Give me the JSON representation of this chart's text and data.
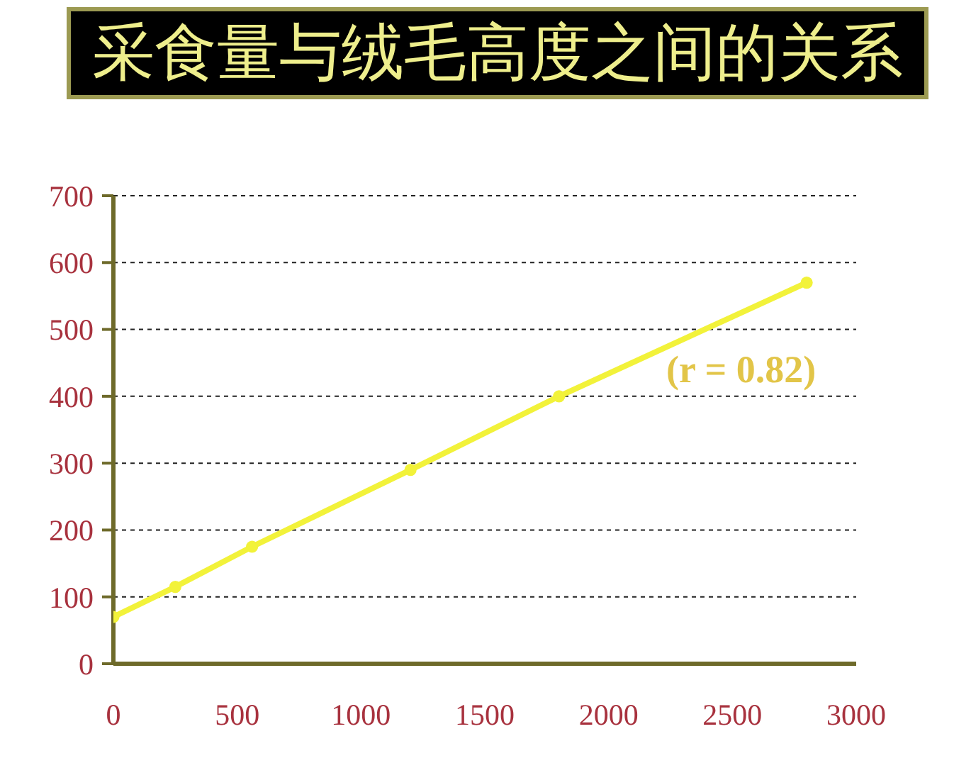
{
  "chart_data": {
    "type": "line",
    "title": "采食量与绒毛高度之间的关系",
    "x": [
      0,
      250,
      560,
      1200,
      1800,
      2800
    ],
    "series": [
      {
        "color": "#f2f23a",
        "values": [
          70,
          115,
          175,
          290,
          400,
          570
        ]
      }
    ],
    "xlim": [
      0,
      3000
    ],
    "xticks": [
      0,
      500,
      1000,
      1500,
      2000,
      2500,
      3000
    ],
    "ylim": [
      0,
      700
    ],
    "yticks": [
      0,
      100,
      200,
      300,
      400,
      500,
      600,
      700
    ],
    "grid": "y",
    "marker": "circle",
    "annotations": [
      "(r = 0.82)"
    ]
  }
}
